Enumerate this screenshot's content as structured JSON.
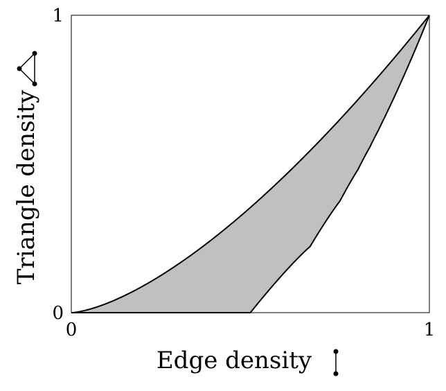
{
  "chart_data": {
    "type": "area",
    "title": "",
    "xlabel": "Edge density",
    "ylabel": "Triangle density",
    "xlim": [
      0,
      1
    ],
    "ylim": [
      0,
      1
    ],
    "x_ticks": [
      "0",
      "1"
    ],
    "y_ticks": [
      "0",
      "1"
    ],
    "grid": false,
    "legend": "none",
    "fill_color": "#c0c0c0",
    "line_color": "#000000",
    "upper_boundary": {
      "formula": "y = x^1.5",
      "x": [
        0,
        0.1,
        0.2,
        0.3,
        0.4,
        0.5,
        0.6,
        0.7,
        0.8,
        0.9,
        1.0
      ],
      "y": [
        0,
        0.032,
        0.089,
        0.164,
        0.253,
        0.354,
        0.465,
        0.586,
        0.716,
        0.854,
        1.0
      ]
    },
    "lower_boundary": {
      "x": [
        0,
        0.5,
        0.6667,
        0.75,
        0.8,
        0.8333,
        0.8571,
        1.0
      ],
      "y": [
        0,
        0,
        0.2222,
        0.375,
        0.48,
        0.5556,
        0.6122,
        1.0
      ]
    },
    "axis_icons": {
      "x": "edge-graph-icon",
      "y": "triangle-graph-icon"
    }
  }
}
